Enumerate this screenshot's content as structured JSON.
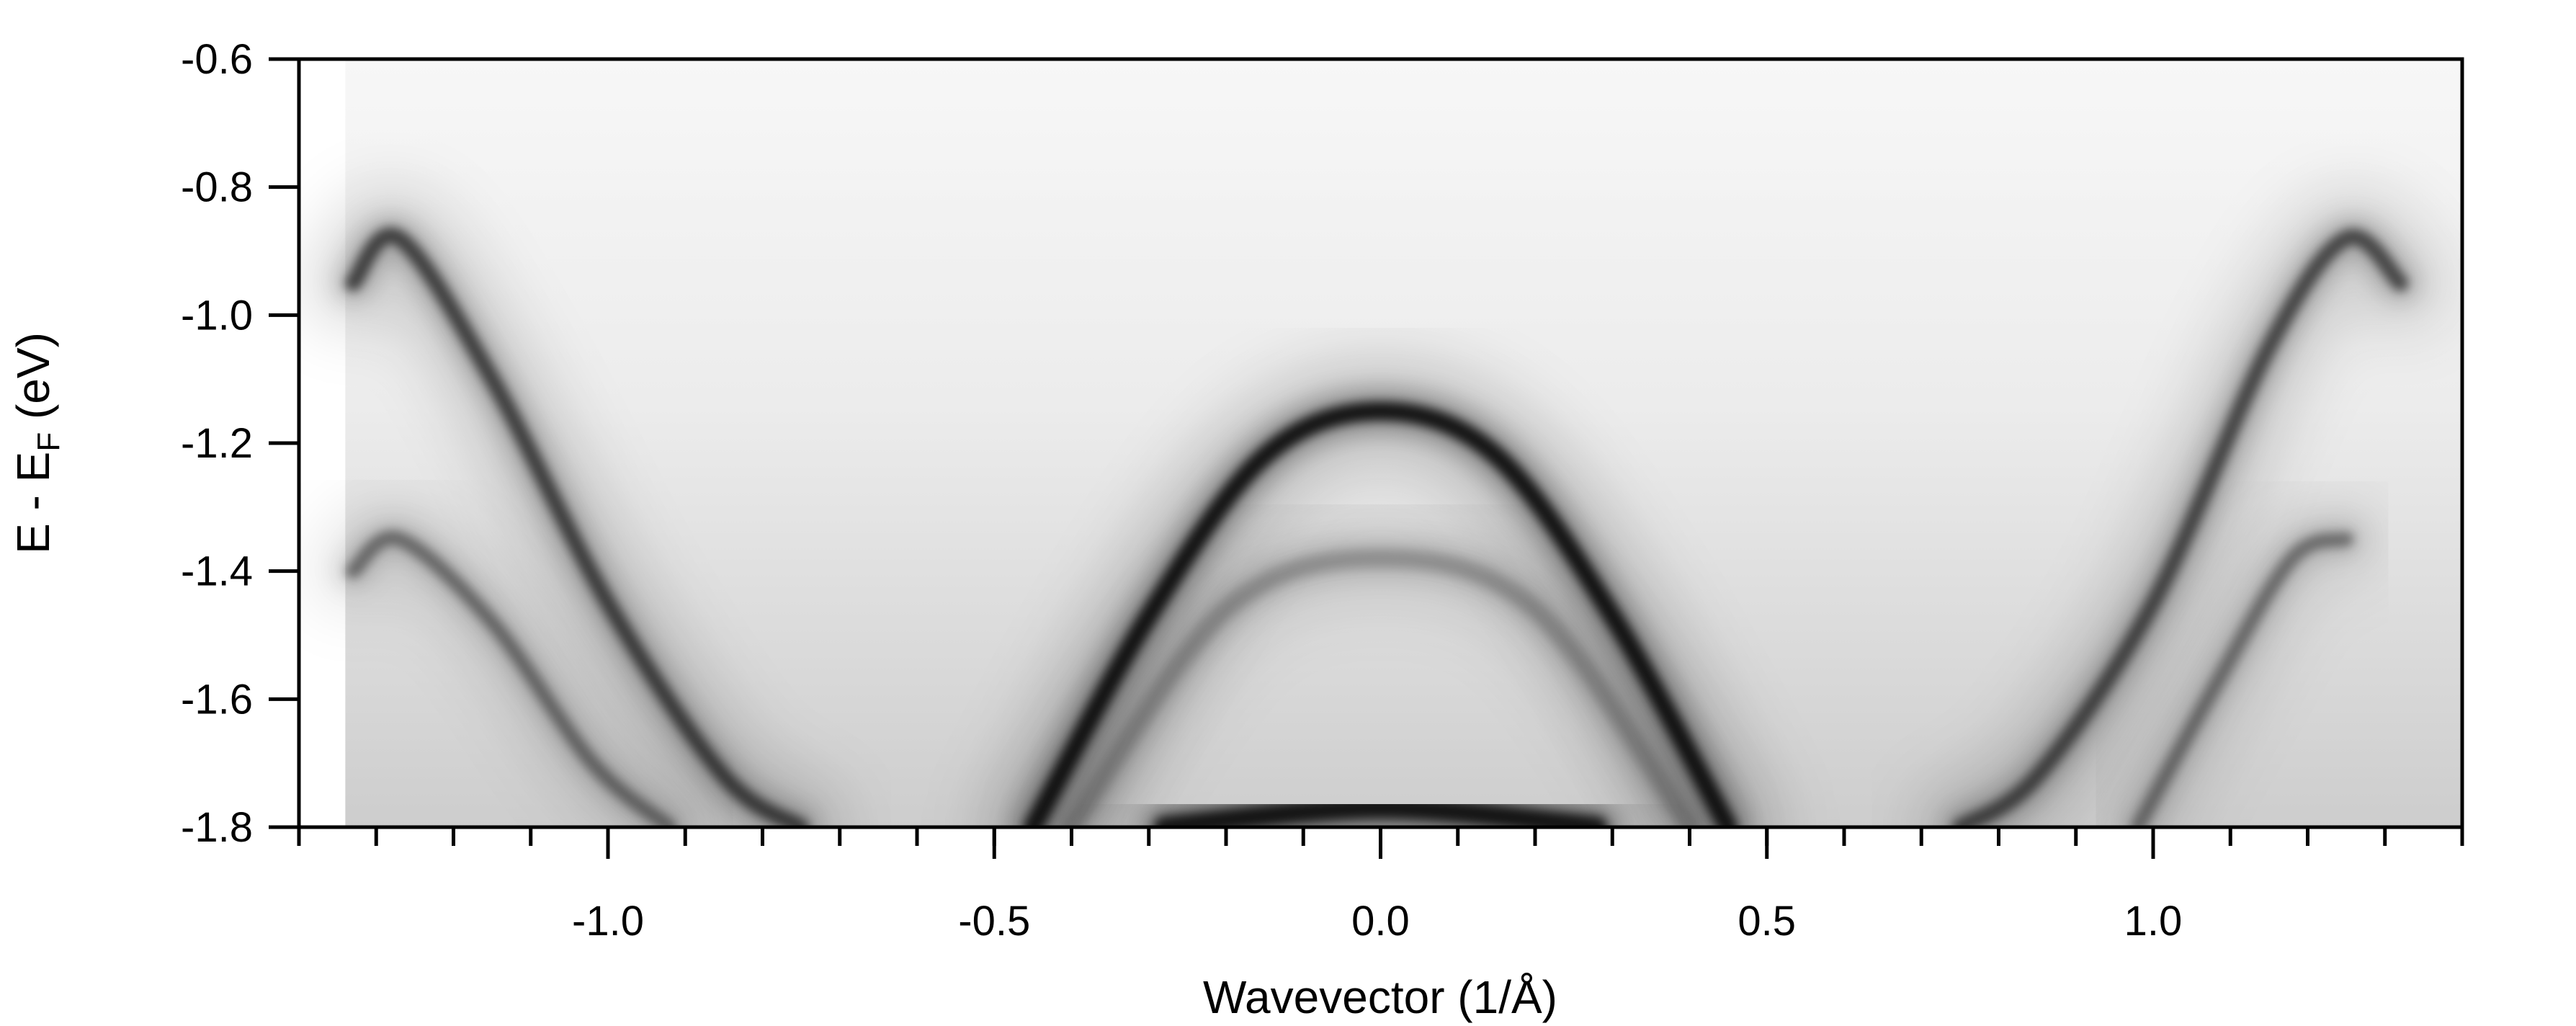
{
  "chart_data": {
    "type": "heatmap",
    "title": "",
    "xlabel": "Wavevector (1/Å)",
    "ylabel": "E - E_F (eV)",
    "ylabel_parts": {
      "main": "E - E",
      "sub": "F",
      "unit": " (eV)"
    },
    "xlim": [
      -1.4,
      1.4
    ],
    "ylim": [
      -1.8,
      -0.6
    ],
    "x_ticks": [
      -1.0,
      -0.5,
      0.0,
      0.5,
      1.0
    ],
    "x_tick_labels": [
      "-1.0",
      "-0.5",
      "0.0",
      "0.5",
      "1.0"
    ],
    "x_minor_step": 0.1,
    "y_ticks": [
      -0.6,
      -0.8,
      -1.0,
      -1.2,
      -1.4,
      -1.6,
      -1.8
    ],
    "y_tick_labels": [
      "-0.6",
      "-0.8",
      "-1.0",
      "-1.2",
      "-1.4",
      "-1.6",
      "-1.8"
    ],
    "data_extent_x": [
      -1.34,
      1.4
    ],
    "colormap": "grayscale (dark = high intensity)",
    "grid": false,
    "legend": "none",
    "bands": [
      {
        "name": "central band",
        "x": [
          -0.45,
          -0.3,
          -0.15,
          0.0,
          0.15,
          0.3,
          0.45
        ],
        "y": [
          -1.8,
          -1.47,
          -1.22,
          -1.15,
          -1.22,
          -1.47,
          -1.8
        ]
      },
      {
        "name": "inner central band",
        "x": [
          -0.4,
          -0.2,
          0.0,
          0.2,
          0.4
        ],
        "y": [
          -1.8,
          -1.46,
          -1.38,
          -1.46,
          -1.8
        ]
      },
      {
        "name": "left upper band",
        "x": [
          -1.33,
          -1.27,
          -1.15,
          -1.0,
          -0.85,
          -0.75
        ],
        "y": [
          -0.95,
          -0.88,
          -1.1,
          -1.45,
          -1.72,
          -1.8
        ]
      },
      {
        "name": "left lower band",
        "x": [
          -1.33,
          -1.27,
          -1.15,
          -1.02,
          -0.92
        ],
        "y": [
          -1.4,
          -1.35,
          -1.48,
          -1.7,
          -1.8
        ]
      },
      {
        "name": "right upper band",
        "x": [
          0.75,
          0.85,
          1.0,
          1.15,
          1.25,
          1.32
        ],
        "y": [
          -1.8,
          -1.72,
          -1.45,
          -1.05,
          -0.88,
          -0.95
        ]
      },
      {
        "name": "right lower band",
        "x": [
          0.98,
          1.08,
          1.18,
          1.25
        ],
        "y": [
          -1.8,
          -1.58,
          -1.38,
          -1.35
        ]
      },
      {
        "name": "bottom band",
        "x": [
          -0.28,
          0.0,
          0.28
        ],
        "y": [
          -1.8,
          -1.77,
          -1.8
        ]
      }
    ]
  }
}
